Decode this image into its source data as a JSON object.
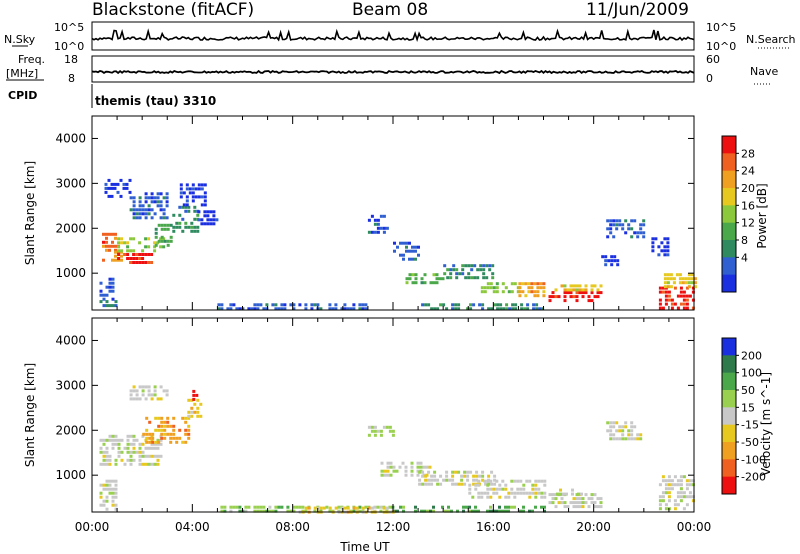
{
  "header": {
    "station": "Blackstone (fitACF)",
    "beam": "Beam 08",
    "date": "11/Jun/2009"
  },
  "top_panels": {
    "nsky_label": "N.Sky",
    "nsearch_label": "N.Search",
    "nsky_ticks": [
      "10^5",
      "10^0"
    ],
    "nsearch_ticks": [
      "10^5",
      "10^0"
    ],
    "freq_label_1": "Freq.",
    "freq_label_2": "[MHz]",
    "freq_ticks": [
      "18",
      "8"
    ],
    "nave_label": "Nave",
    "nave_ticks": [
      "60",
      "0"
    ],
    "cpid_label": "CPID",
    "cpid_value": "themis (tau) 3310"
  },
  "chart_data": [
    {
      "type": "heatmap",
      "panel": "power",
      "ylabel": "Slant Range [km]",
      "yticks": [
        "1000",
        "2000",
        "3000",
        "4000"
      ],
      "ylim": [
        180,
        4500
      ],
      "xlim": [
        0,
        24
      ],
      "colorbar_label": "Power [dB]",
      "colorbar_ticks": [
        "4",
        "8",
        "12",
        "16",
        "20",
        "24",
        "28"
      ],
      "colors": [
        "#1a2fe0",
        "#2f5fd0",
        "#2f8a5f",
        "#4aa84a",
        "#8cc83c",
        "#e6c81e",
        "#f0a020",
        "#f06020",
        "#ee1010"
      ],
      "cells": [
        [
          0.4,
          1.0,
          1500,
          1900,
          7
        ],
        [
          0.4,
          1.2,
          1300,
          1500,
          6
        ],
        [
          1.0,
          2.5,
          1200,
          1450,
          8
        ],
        [
          1.0,
          2.8,
          1500,
          1800,
          4
        ],
        [
          2.5,
          3.2,
          1600,
          2100,
          3
        ],
        [
          3.2,
          4.2,
          1900,
          2500,
          2
        ],
        [
          0.3,
          0.8,
          400,
          900,
          1
        ],
        [
          0.3,
          1.0,
          250,
          400,
          2
        ],
        [
          1.5,
          3.0,
          2200,
          2800,
          1
        ],
        [
          3.5,
          4.5,
          2500,
          3000,
          0
        ],
        [
          0.5,
          1.5,
          2700,
          3100,
          0
        ],
        [
          4.2,
          5.0,
          2100,
          2400,
          0
        ],
        [
          11.0,
          11.8,
          1900,
          2300,
          1
        ],
        [
          12.0,
          13.0,
          1300,
          1700,
          1
        ],
        [
          12.5,
          14.0,
          800,
          1000,
          3
        ],
        [
          14.0,
          16.0,
          900,
          1200,
          2
        ],
        [
          15.5,
          17.0,
          600,
          800,
          4
        ],
        [
          17.0,
          18.0,
          500,
          800,
          6
        ],
        [
          18.2,
          20.3,
          350,
          600,
          8
        ],
        [
          18.2,
          20.3,
          600,
          750,
          5
        ],
        [
          20.3,
          21.0,
          1200,
          1400,
          0
        ],
        [
          20.5,
          22.0,
          1800,
          2200,
          1
        ],
        [
          22.3,
          22.9,
          1400,
          1800,
          0
        ],
        [
          22.6,
          24.0,
          250,
          700,
          8
        ],
        [
          22.8,
          24.0,
          700,
          1000,
          5
        ],
        [
          5.0,
          11.0,
          200,
          330,
          1
        ],
        [
          13.0,
          18.0,
          200,
          330,
          2
        ]
      ]
    },
    {
      "type": "heatmap",
      "panel": "velocity",
      "ylabel": "Slant Range [km]",
      "yticks": [
        "1000",
        "2000",
        "3000",
        "4000"
      ],
      "ylim": [
        180,
        4500
      ],
      "xlim": [
        0,
        24
      ],
      "xticks": [
        "00:00",
        "04:00",
        "08:00",
        "12:00",
        "16:00",
        "20:00",
        "00:00"
      ],
      "xlabel": "Time UT",
      "colorbar_label": "Velocity [m s^-1]",
      "colorbar_ticks": [
        "200",
        "100",
        "50",
        "15",
        "-15",
        "-50",
        "-100",
        "-200"
      ],
      "colors": [
        "#1a2fe0",
        "#2f7a4a",
        "#4aa84a",
        "#9ad050",
        "#c8c8c8",
        "#e6c81e",
        "#f0a020",
        "#f06020",
        "#ee1010"
      ],
      "cells": [
        [
          0.3,
          2.8,
          1200,
          1900,
          4
        ],
        [
          0.3,
          1.0,
          250,
          900,
          4
        ],
        [
          2.0,
          3.8,
          1700,
          2300,
          6
        ],
        [
          3.8,
          4.3,
          2300,
          2700,
          5
        ],
        [
          4.0,
          4.2,
          2700,
          2900,
          8
        ],
        [
          1.5,
          3.0,
          2700,
          3000,
          4
        ],
        [
          11.0,
          12.0,
          1900,
          2100,
          3
        ],
        [
          11.5,
          13.5,
          1000,
          1300,
          4
        ],
        [
          13.0,
          16.0,
          800,
          1100,
          4
        ],
        [
          15.0,
          18.0,
          500,
          900,
          4
        ],
        [
          18.2,
          20.3,
          300,
          600,
          4
        ],
        [
          18.5,
          19.5,
          600,
          700,
          4
        ],
        [
          20.5,
          22.0,
          1800,
          2200,
          4
        ],
        [
          22.6,
          24.0,
          250,
          1000,
          4
        ],
        [
          5.0,
          12.0,
          200,
          320,
          3
        ],
        [
          12.0,
          18.0,
          200,
          320,
          2
        ],
        [
          8.0,
          12.0,
          200,
          300,
          5
        ]
      ]
    }
  ]
}
